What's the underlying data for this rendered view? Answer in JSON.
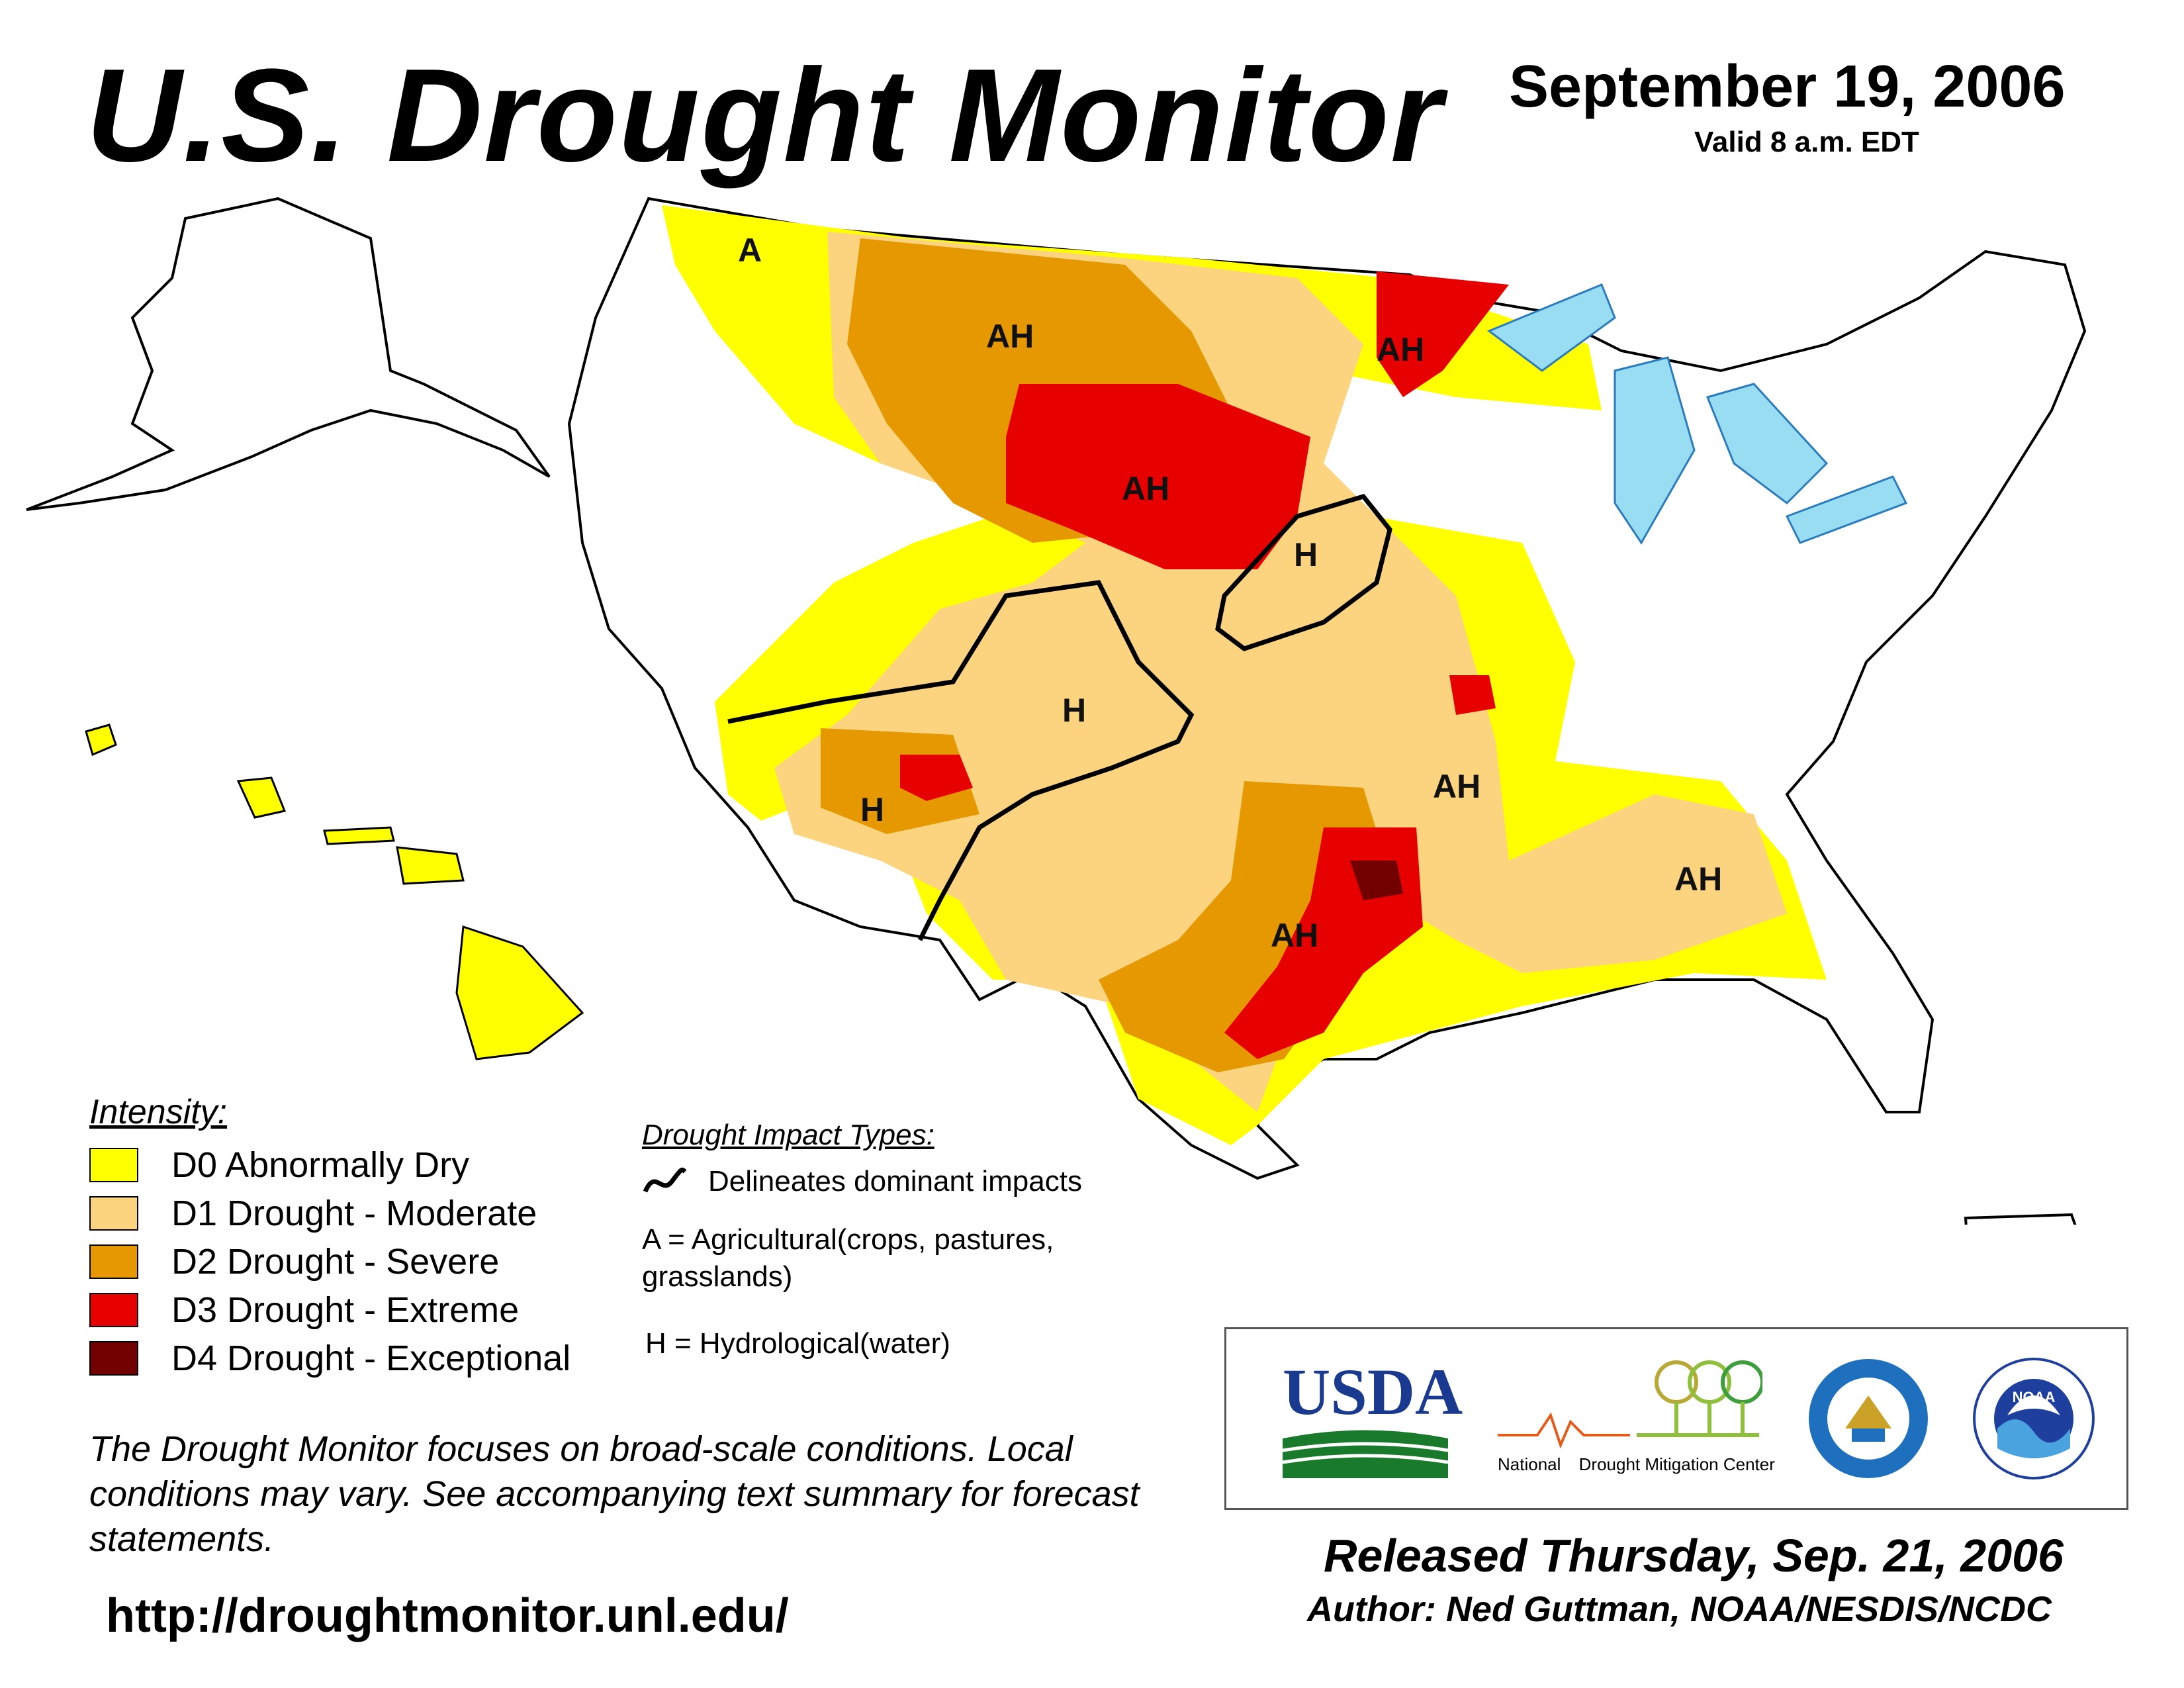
{
  "header": {
    "title": "U.S. Drought Monitor",
    "date": "September 19, 2006",
    "valid": "Valid 8 a.m. EDT"
  },
  "map": {
    "impact_labels": [
      "A",
      "AH",
      "AH",
      "AH",
      "H",
      "H",
      "H",
      "AH",
      "AH",
      "AH"
    ]
  },
  "legend": {
    "title": "Intensity:",
    "items": [
      {
        "label": "D0 Abnormally Dry",
        "color": "#FFFF00"
      },
      {
        "label": "D1 Drought - Moderate",
        "color": "#FCD37F"
      },
      {
        "label": "D2 Drought - Severe",
        "color": "#E69800"
      },
      {
        "label": "D3 Drought - Extreme",
        "color": "#E60000"
      },
      {
        "label": "D4 Drought - Exceptional",
        "color": "#730000"
      }
    ]
  },
  "impacts": {
    "title": "Drought Impact Types:",
    "line_label": "Delineates dominant impacts",
    "a_label": "A = Agricultural(crops, pastures, grasslands)",
    "h_label": "H = Hydrological(water)"
  },
  "disclaimer": "The Drought Monitor focuses on broad-scale conditions. Local conditions may vary. See accompanying text summary for forecast statements.",
  "url": "http://droughtmonitor.unl.edu/",
  "logos": {
    "usda": "USDA",
    "ndmc_left": "National",
    "ndmc_right": "Drought Mitigation Center",
    "noaa": "NOAA"
  },
  "footer": {
    "released": "Released Thursday, Sep. 21, 2006",
    "author": "Author: Ned Guttman, NOAA/NESDIS/NCDC"
  }
}
